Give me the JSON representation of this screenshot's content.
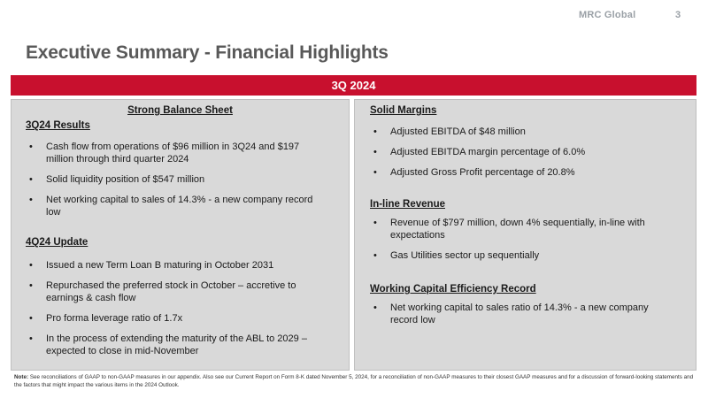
{
  "header": {
    "logo": "MRC Global",
    "page_number": "3"
  },
  "title": "Executive Summary - Financial Highlights",
  "banner": "3Q 2024",
  "left_panel": {
    "heading": "Strong Balance Sheet",
    "section1": {
      "title": "3Q24 Results",
      "items": [
        "Cash flow from operations of $96 million in 3Q24 and $197 million through third quarter 2024",
        "Solid liquidity position of $547 million",
        "Net working capital to sales of 14.3% - a new company record low"
      ]
    },
    "section2": {
      "title": "4Q24 Update",
      "items": [
        "Issued a new Term Loan B maturing in October 2031",
        "Repurchased the preferred stock in October – accretive to earnings & cash flow",
        "Pro forma leverage ratio of 1.7x",
        "In the process of extending the maturity of the ABL to 2029 – expected to close in mid-November"
      ]
    }
  },
  "right_panel": {
    "section1": {
      "title": "Solid Margins",
      "items": [
        "Adjusted EBITDA of $48 million",
        "Adjusted EBITDA margin percentage of 6.0%",
        "Adjusted Gross Profit percentage of 20.8%"
      ]
    },
    "section2": {
      "title": "In-line Revenue",
      "items": [
        "Revenue of $797 million, down 4% sequentially, in-line with expectations",
        "Gas Utilities sector up sequentially"
      ]
    },
    "section3": {
      "title": "Working Capital Efficiency Record",
      "items": [
        "Net working capital to sales ratio of 14.3% - a new company record low"
      ]
    }
  },
  "footnote": {
    "label": "Note:",
    "text": "See reconciliations of GAAP to non-GAAP measures in our appendix. Also see our Current Report on Form 8-K dated November 5, 2024, for a reconciliation of non-GAAP measures to their closest GAAP measures and for a discussion of forward-looking statements and the factors that might impact the various items in the 2024 Outlook."
  }
}
